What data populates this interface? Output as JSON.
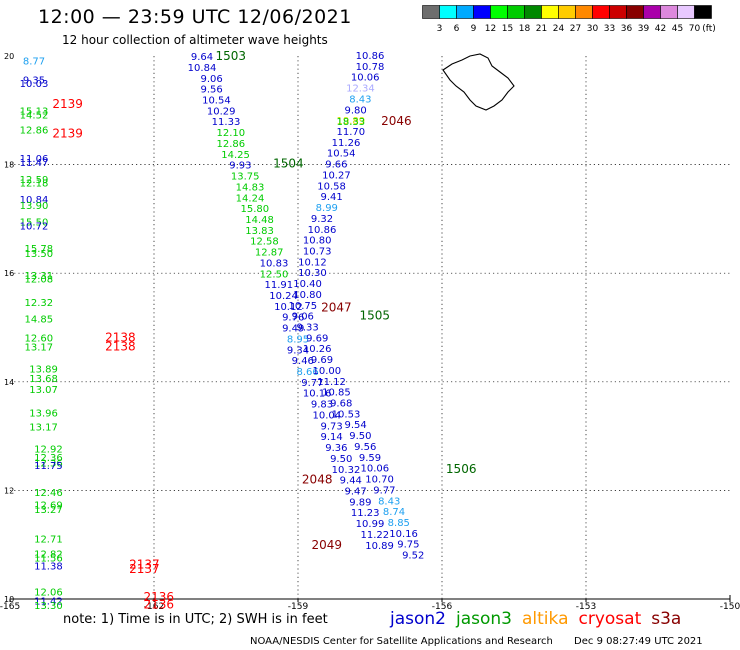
{
  "header": {
    "title": "12:00 — 23:59 UTC 12/06/2021",
    "subtitle": "12 hour collection of altimeter wave heights"
  },
  "colorbar": {
    "colors": [
      "#6e6e6e",
      "#00ffff",
      "#00aaff",
      "#0000ff",
      "#00ff00",
      "#00cc00",
      "#008800",
      "#ffff00",
      "#ffcc00",
      "#ff8800",
      "#ff0000",
      "#cc0000",
      "#880000",
      "#aa00aa",
      "#dd88dd",
      "#e8c8ff",
      "#000000"
    ],
    "labels": [
      "3",
      "6",
      "9",
      "12",
      "15",
      "18",
      "21",
      "24",
      "27",
      "30",
      "33",
      "36",
      "39",
      "42",
      "45",
      "70"
    ],
    "unit": "(ft)"
  },
  "chart_data": {
    "type": "scatter",
    "xlim": [
      -165,
      -150
    ],
    "ylim": [
      10,
      20
    ],
    "x_ticks": [
      "-165",
      "-162",
      "-159",
      "-156",
      "-153",
      "-150"
    ],
    "y_ticks": [
      "10",
      "12",
      "14",
      "16",
      "18",
      "20"
    ],
    "grid": true,
    "palette": {
      "0": "#1ea0f0",
      "1": "#0000cc",
      "2": "#00cc00",
      "3": "#ff0000",
      "4": "#006600",
      "5": "#880000",
      "6": "#aaaaff",
      "7": "#dddd00"
    },
    "points": [
      {
        "lon": -164.5,
        "lat": 19.9,
        "v": "8.77",
        "c": 0
      },
      {
        "lon": -164.5,
        "lat": 19.55,
        "v": "9.35",
        "c": 1
      },
      {
        "lon": -164.5,
        "lat": 19.48,
        "v": "10.03",
        "c": 1
      },
      {
        "lon": -164.5,
        "lat": 18.98,
        "v": "15.13",
        "c": 2
      },
      {
        "lon": -164.5,
        "lat": 18.9,
        "v": "14.52",
        "c": 2
      },
      {
        "lon": -164.5,
        "lat": 18.63,
        "v": "12.86",
        "c": 2
      },
      {
        "lon": -164.5,
        "lat": 18.1,
        "v": "11.06",
        "c": 1
      },
      {
        "lon": -164.5,
        "lat": 18.03,
        "v": "11.47",
        "c": 1
      },
      {
        "lon": -164.5,
        "lat": 17.72,
        "v": "12.59",
        "c": 2
      },
      {
        "lon": -164.5,
        "lat": 17.65,
        "v": "12.18",
        "c": 2
      },
      {
        "lon": -164.5,
        "lat": 17.35,
        "v": "10.84",
        "c": 1
      },
      {
        "lon": -164.5,
        "lat": 17.24,
        "v": "13.90",
        "c": 2
      },
      {
        "lon": -164.5,
        "lat": 16.93,
        "v": "15.50",
        "c": 2
      },
      {
        "lon": -164.5,
        "lat": 16.86,
        "v": "10.72",
        "c": 1
      },
      {
        "lon": -164.4,
        "lat": 16.45,
        "v": "15.78",
        "c": 2
      },
      {
        "lon": -164.4,
        "lat": 16.35,
        "v": "13.50",
        "c": 2
      },
      {
        "lon": -164.4,
        "lat": 15.95,
        "v": "13.31",
        "c": 2
      },
      {
        "lon": -164.4,
        "lat": 15.88,
        "v": "12.08",
        "c": 2
      },
      {
        "lon": -164.4,
        "lat": 15.45,
        "v": "12.32",
        "c": 2
      },
      {
        "lon": -164.4,
        "lat": 15.15,
        "v": "14.85",
        "c": 2
      },
      {
        "lon": -164.4,
        "lat": 14.8,
        "v": "12.60",
        "c": 2
      },
      {
        "lon": -164.4,
        "lat": 14.63,
        "v": "13.17",
        "c": 2
      },
      {
        "lon": -164.3,
        "lat": 14.23,
        "v": "13.89",
        "c": 2
      },
      {
        "lon": -164.3,
        "lat": 14.05,
        "v": "13.68",
        "c": 2
      },
      {
        "lon": -164.3,
        "lat": 13.85,
        "v": "13.07",
        "c": 2
      },
      {
        "lon": -164.3,
        "lat": 13.42,
        "v": "13.96",
        "c": 2
      },
      {
        "lon": -164.3,
        "lat": 13.16,
        "v": "13.17",
        "c": 2
      },
      {
        "lon": -164.2,
        "lat": 12.75,
        "v": "12.92",
        "c": 2
      },
      {
        "lon": -164.2,
        "lat": 12.6,
        "v": "12.36",
        "c": 2
      },
      {
        "lon": -164.2,
        "lat": 12.5,
        "v": "12.36",
        "c": 2
      },
      {
        "lon": -164.2,
        "lat": 12.45,
        "v": "11.75",
        "c": 1
      },
      {
        "lon": -164.2,
        "lat": 11.95,
        "v": "12.46",
        "c": 2
      },
      {
        "lon": -164.2,
        "lat": 11.72,
        "v": "12.69",
        "c": 2
      },
      {
        "lon": -164.2,
        "lat": 11.64,
        "v": "13.27",
        "c": 2
      },
      {
        "lon": -164.2,
        "lat": 11.1,
        "v": "12.71",
        "c": 2
      },
      {
        "lon": -164.2,
        "lat": 10.82,
        "v": "12.82",
        "c": 2
      },
      {
        "lon": -164.2,
        "lat": 10.75,
        "v": "11.56",
        "c": 2
      },
      {
        "lon": -164.2,
        "lat": 10.6,
        "v": "11.38",
        "c": 1
      },
      {
        "lon": -164.2,
        "lat": 10.12,
        "v": "12.06",
        "c": 2
      },
      {
        "lon": -164.2,
        "lat": 9.95,
        "v": "11.42",
        "c": 1
      },
      {
        "lon": -164.2,
        "lat": 9.87,
        "v": "13.30",
        "c": 2
      },
      {
        "lon": -163.8,
        "lat": 19.1,
        "v": "2139",
        "c": 3
      },
      {
        "lon": -163.8,
        "lat": 18.55,
        "v": "2139",
        "c": 3
      },
      {
        "lon": -162.7,
        "lat": 14.8,
        "v": "2138",
        "c": 3
      },
      {
        "lon": -162.7,
        "lat": 14.63,
        "v": "2138",
        "c": 3
      },
      {
        "lon": -162.2,
        "lat": 10.62,
        "v": "2137",
        "c": 3
      },
      {
        "lon": -162.2,
        "lat": 10.53,
        "v": "2137",
        "c": 3
      },
      {
        "lon": -161.9,
        "lat": 10.02,
        "v": "2136",
        "c": 3
      },
      {
        "lon": -161.9,
        "lat": 9.88,
        "v": "2136",
        "c": 3
      },
      {
        "lon": -161.0,
        "lat": 19.98,
        "v": "9.64",
        "c": 1
      },
      {
        "lon": -161.0,
        "lat": 19.78,
        "v": "10.84",
        "c": 1
      },
      {
        "lon": -160.8,
        "lat": 19.58,
        "v": "9.06",
        "c": 1
      },
      {
        "lon": -160.8,
        "lat": 19.38,
        "v": "9.56",
        "c": 1
      },
      {
        "lon": -160.7,
        "lat": 19.18,
        "v": "10.54",
        "c": 1
      },
      {
        "lon": -160.6,
        "lat": 18.98,
        "v": "10.29",
        "c": 1
      },
      {
        "lon": -160.5,
        "lat": 18.78,
        "v": "11.33",
        "c": 1
      },
      {
        "lon": -160.4,
        "lat": 18.58,
        "v": "12.10",
        "c": 2
      },
      {
        "lon": -160.4,
        "lat": 18.38,
        "v": "12.86",
        "c": 2
      },
      {
        "lon": -160.3,
        "lat": 18.18,
        "v": "14.25",
        "c": 2
      },
      {
        "lon": -160.2,
        "lat": 17.98,
        "v": "9.93",
        "c": 1
      },
      {
        "lon": -160.1,
        "lat": 17.78,
        "v": "13.75",
        "c": 2
      },
      {
        "lon": -160.0,
        "lat": 17.58,
        "v": "14.83",
        "c": 2
      },
      {
        "lon": -160.0,
        "lat": 17.38,
        "v": "14.24",
        "c": 2
      },
      {
        "lon": -159.9,
        "lat": 17.18,
        "v": "15.80",
        "c": 2
      },
      {
        "lon": -159.8,
        "lat": 16.98,
        "v": "14.48",
        "c": 2
      },
      {
        "lon": -159.8,
        "lat": 16.78,
        "v": "13.83",
        "c": 2
      },
      {
        "lon": -159.7,
        "lat": 16.58,
        "v": "12.58",
        "c": 2
      },
      {
        "lon": -159.6,
        "lat": 16.38,
        "v": "12.87",
        "c": 2
      },
      {
        "lon": -159.5,
        "lat": 16.18,
        "v": "10.83",
        "c": 1
      },
      {
        "lon": -159.5,
        "lat": 15.98,
        "v": "12.50",
        "c": 2
      },
      {
        "lon": -159.4,
        "lat": 15.78,
        "v": "11.91",
        "c": 1
      },
      {
        "lon": -159.3,
        "lat": 15.58,
        "v": "10.24",
        "c": 1
      },
      {
        "lon": -159.2,
        "lat": 15.38,
        "v": "10.12",
        "c": 1
      },
      {
        "lon": -159.1,
        "lat": 15.18,
        "v": "9.76",
        "c": 1
      },
      {
        "lon": -159.1,
        "lat": 14.98,
        "v": "9.49",
        "c": 1
      },
      {
        "lon": -159.0,
        "lat": 14.78,
        "v": "8.95",
        "c": 0
      },
      {
        "lon": -159.0,
        "lat": 14.58,
        "v": "9.34",
        "c": 1
      },
      {
        "lon": -158.9,
        "lat": 14.38,
        "v": "9.46",
        "c": 1
      },
      {
        "lon": -158.8,
        "lat": 14.18,
        "v": "8.66",
        "c": 0
      },
      {
        "lon": -158.7,
        "lat": 13.98,
        "v": "9.77",
        "c": 1
      },
      {
        "lon": -158.6,
        "lat": 13.78,
        "v": "10.16",
        "c": 1
      },
      {
        "lon": -158.5,
        "lat": 13.58,
        "v": "9.83",
        "c": 1
      },
      {
        "lon": -158.4,
        "lat": 13.38,
        "v": "10.04",
        "c": 1
      },
      {
        "lon": -158.3,
        "lat": 13.18,
        "v": "9.73",
        "c": 1
      },
      {
        "lon": -158.3,
        "lat": 12.98,
        "v": "9.14",
        "c": 1
      },
      {
        "lon": -158.2,
        "lat": 12.78,
        "v": "9.36",
        "c": 1
      },
      {
        "lon": -158.1,
        "lat": 12.58,
        "v": "9.50",
        "c": 1
      },
      {
        "lon": -158.0,
        "lat": 12.38,
        "v": "10.32",
        "c": 1
      },
      {
        "lon": -157.9,
        "lat": 12.18,
        "v": "9.44",
        "c": 1
      },
      {
        "lon": -157.8,
        "lat": 11.98,
        "v": "9.47",
        "c": 1
      },
      {
        "lon": -157.7,
        "lat": 11.78,
        "v": "9.89",
        "c": 1
      },
      {
        "lon": -157.6,
        "lat": 11.58,
        "v": "11.23",
        "c": 1
      },
      {
        "lon": -157.5,
        "lat": 11.38,
        "v": "10.99",
        "c": 1
      },
      {
        "lon": -157.4,
        "lat": 11.18,
        "v": "11.22",
        "c": 1
      },
      {
        "lon": -157.3,
        "lat": 10.98,
        "v": "10.89",
        "c": 1
      },
      {
        "lon": -160.4,
        "lat": 19.98,
        "v": "1503",
        "c": 4
      },
      {
        "lon": -159.2,
        "lat": 18.0,
        "v": "1504",
        "c": 4
      },
      {
        "lon": -157.4,
        "lat": 15.2,
        "v": "1505",
        "c": 4
      },
      {
        "lon": -155.6,
        "lat": 12.38,
        "v": "1506",
        "c": 4
      },
      {
        "lon": -158.2,
        "lat": 15.35,
        "v": "2047",
        "c": 5
      },
      {
        "lon": -158.6,
        "lat": 12.18,
        "v": "2048",
        "c": 5
      },
      {
        "lon": -158.4,
        "lat": 10.98,
        "v": "2049",
        "c": 5
      },
      {
        "lon": -157.5,
        "lat": 20.0,
        "v": "10.86",
        "c": 1
      },
      {
        "lon": -157.5,
        "lat": 19.8,
        "v": "10.78",
        "c": 1
      },
      {
        "lon": -157.6,
        "lat": 19.6,
        "v": "10.06",
        "c": 1
      },
      {
        "lon": -157.7,
        "lat": 19.4,
        "v": "12.34",
        "c": 6
      },
      {
        "lon": -157.7,
        "lat": 19.2,
        "v": "8.43",
        "c": 0
      },
      {
        "lon": -157.8,
        "lat": 19.0,
        "v": "9.80",
        "c": 1
      },
      {
        "lon": -157.9,
        "lat": 18.8,
        "v": "19.89",
        "c": 7
      },
      {
        "lon": -157.9,
        "lat": 18.78,
        "v": "18.33",
        "c": 2
      },
      {
        "lon": -156.95,
        "lat": 18.78,
        "v": "2046",
        "c": 5
      },
      {
        "lon": -157.9,
        "lat": 18.6,
        "v": "11.70",
        "c": 1
      },
      {
        "lon": -158.0,
        "lat": 18.4,
        "v": "11.26",
        "c": 1
      },
      {
        "lon": -158.1,
        "lat": 18.2,
        "v": "10.54",
        "c": 1
      },
      {
        "lon": -158.2,
        "lat": 18.0,
        "v": "9.66",
        "c": 1
      },
      {
        "lon": -158.2,
        "lat": 17.8,
        "v": "10.27",
        "c": 1
      },
      {
        "lon": -158.3,
        "lat": 17.6,
        "v": "10.58",
        "c": 1
      },
      {
        "lon": -158.3,
        "lat": 17.4,
        "v": "9.41",
        "c": 1
      },
      {
        "lon": -158.4,
        "lat": 17.2,
        "v": "8.99",
        "c": 0
      },
      {
        "lon": -158.5,
        "lat": 17.0,
        "v": "9.32",
        "c": 1
      },
      {
        "lon": -158.5,
        "lat": 16.8,
        "v": "10.86",
        "c": 1
      },
      {
        "lon": -158.6,
        "lat": 16.6,
        "v": "10.80",
        "c": 1
      },
      {
        "lon": -158.6,
        "lat": 16.4,
        "v": "10.73",
        "c": 1
      },
      {
        "lon": -158.7,
        "lat": 16.2,
        "v": "10.12",
        "c": 1
      },
      {
        "lon": -158.7,
        "lat": 16.0,
        "v": "10.30",
        "c": 1
      },
      {
        "lon": -158.8,
        "lat": 15.8,
        "v": "10.40",
        "c": 1
      },
      {
        "lon": -158.8,
        "lat": 15.6,
        "v": "10.80",
        "c": 1
      },
      {
        "lon": -158.9,
        "lat": 15.4,
        "v": "10.75",
        "c": 1
      },
      {
        "lon": -158.9,
        "lat": 15.2,
        "v": "9.06",
        "c": 1
      },
      {
        "lon": -158.8,
        "lat": 15.0,
        "v": "9.33",
        "c": 1
      },
      {
        "lon": -158.6,
        "lat": 14.8,
        "v": "9.69",
        "c": 1
      },
      {
        "lon": -158.6,
        "lat": 14.6,
        "v": "10.26",
        "c": 1
      },
      {
        "lon": -158.5,
        "lat": 14.4,
        "v": "9.69",
        "c": 1
      },
      {
        "lon": -158.4,
        "lat": 14.2,
        "v": "10.00",
        "c": 1
      },
      {
        "lon": -158.3,
        "lat": 14.0,
        "v": "11.12",
        "c": 1
      },
      {
        "lon": -158.2,
        "lat": 13.8,
        "v": "10.85",
        "c": 1
      },
      {
        "lon": -158.1,
        "lat": 13.6,
        "v": "9.68",
        "c": 1
      },
      {
        "lon": -158.0,
        "lat": 13.4,
        "v": "10.53",
        "c": 1
      },
      {
        "lon": -157.8,
        "lat": 13.2,
        "v": "9.54",
        "c": 1
      },
      {
        "lon": -157.7,
        "lat": 13.0,
        "v": "9.50",
        "c": 1
      },
      {
        "lon": -157.6,
        "lat": 12.8,
        "v": "9.56",
        "c": 1
      },
      {
        "lon": -157.5,
        "lat": 12.6,
        "v": "9.59",
        "c": 1
      },
      {
        "lon": -157.4,
        "lat": 12.4,
        "v": "10.06",
        "c": 1
      },
      {
        "lon": -157.3,
        "lat": 12.2,
        "v": "10.70",
        "c": 1
      },
      {
        "lon": -157.2,
        "lat": 12.0,
        "v": "9.77",
        "c": 1
      },
      {
        "lon": -157.1,
        "lat": 11.8,
        "v": "8.43",
        "c": 0
      },
      {
        "lon": -157.0,
        "lat": 11.6,
        "v": "8.74",
        "c": 0
      },
      {
        "lon": -156.9,
        "lat": 11.4,
        "v": "8.85",
        "c": 0
      },
      {
        "lon": -156.8,
        "lat": 11.2,
        "v": "10.16",
        "c": 1
      },
      {
        "lon": -156.7,
        "lat": 11.0,
        "v": "9.75",
        "c": 1
      },
      {
        "lon": -156.6,
        "lat": 10.8,
        "v": "9.52",
        "c": 1
      }
    ]
  },
  "legend": [
    {
      "label": "jason2",
      "color": "#0000cc"
    },
    {
      "label": "jason3",
      "color": "#009900"
    },
    {
      "label": "altika",
      "color": "#ff9900"
    },
    {
      "label": "cryosat",
      "color": "#ff0000"
    },
    {
      "label": "s3a",
      "color": "#880000"
    }
  ],
  "note": "note: 1) Time is in UTC; 2) SWH is in feet",
  "footer": {
    "credit": "NOAA/NESDIS Center for Satellite Applications and Research",
    "timestamp": "Dec  9 08:27:49 UTC 2021"
  }
}
